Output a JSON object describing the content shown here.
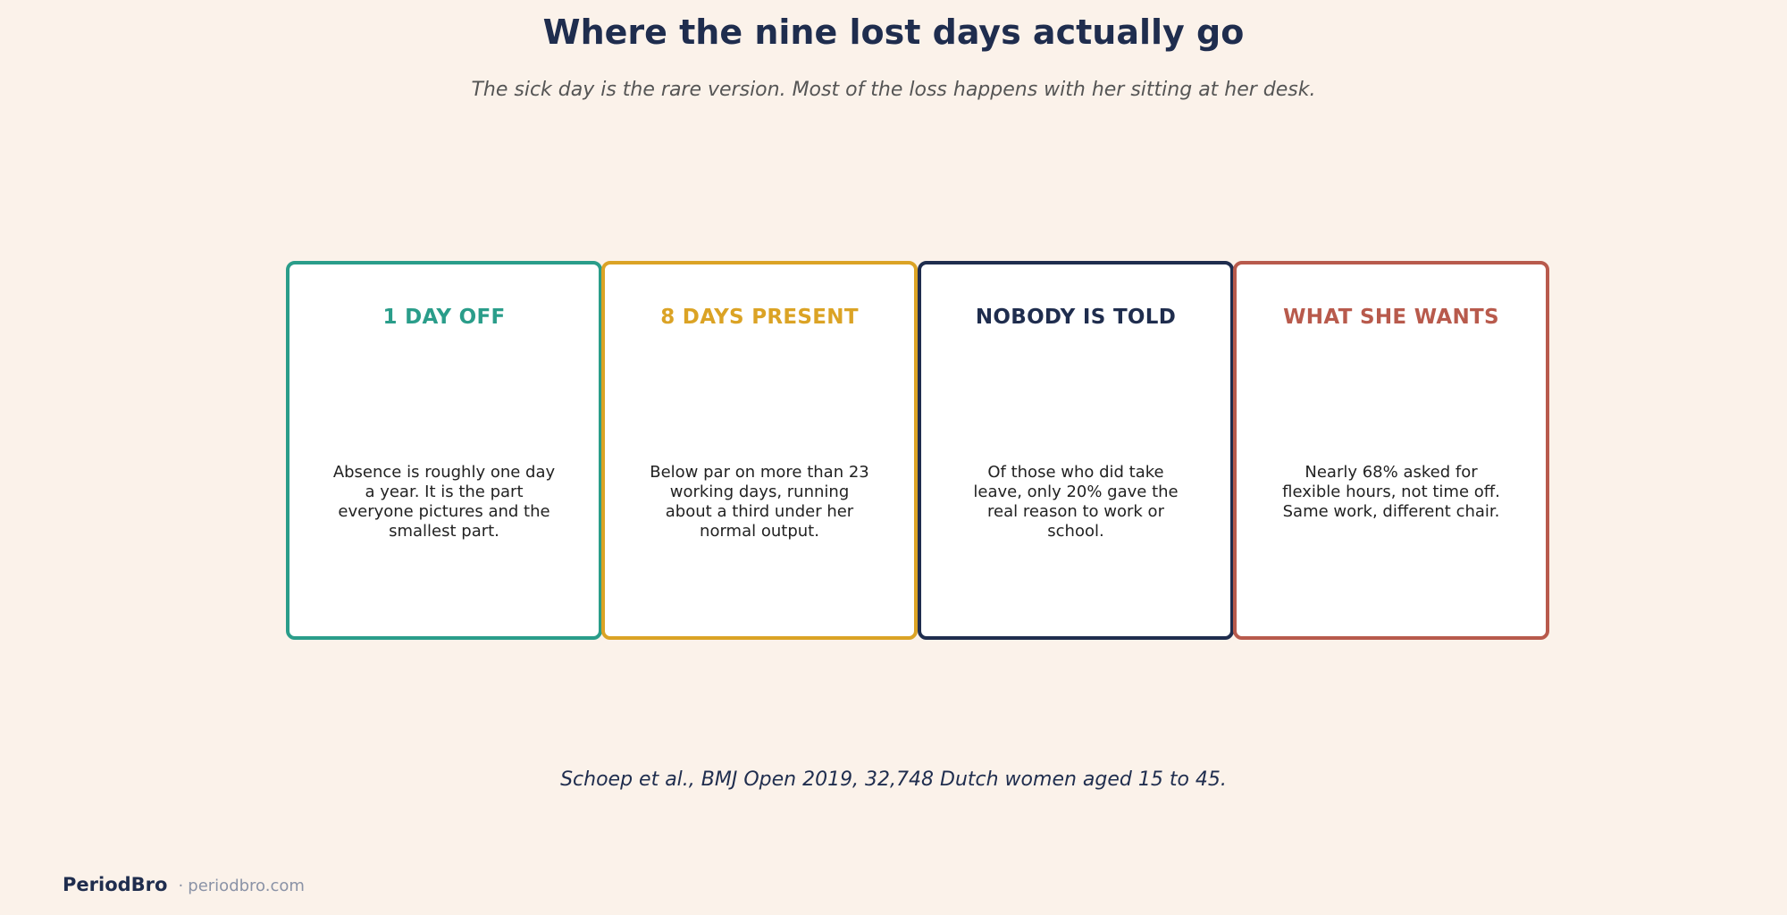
{
  "header": {
    "title": "Where the nine lost days actually go",
    "subtitle": "The sick day is the rare version. Most of the loss happens with her sitting at her desk."
  },
  "cards": [
    {
      "heading": "1 DAY OFF",
      "body": "Absence is roughly one day a year. It is the part everyone pictures and the smallest part.",
      "color": "#2a9d8a"
    },
    {
      "heading": "8 DAYS PRESENT",
      "body": "Below par on more than 23 working days, running about a third under her normal output.",
      "color": "#dba325"
    },
    {
      "heading": "NOBODY IS TOLD",
      "body": "Of those who did take leave, only 20% gave the real reason to work or school.",
      "color": "#1f2d4e"
    },
    {
      "heading": "WHAT SHE WANTS",
      "body": "Nearly 68% asked for flexible hours, not time off. Same work, different chair.",
      "color": "#b85a4c"
    }
  ],
  "citation": "Schoep et al., BMJ Open 2019, 32,748 Dutch women aged 15 to 45.",
  "footer": {
    "brand": "PeriodBro",
    "separator": "·",
    "url": "periodbro.com"
  },
  "colors": {
    "background": "#fbf2ea",
    "title": "#1f2d4e"
  }
}
